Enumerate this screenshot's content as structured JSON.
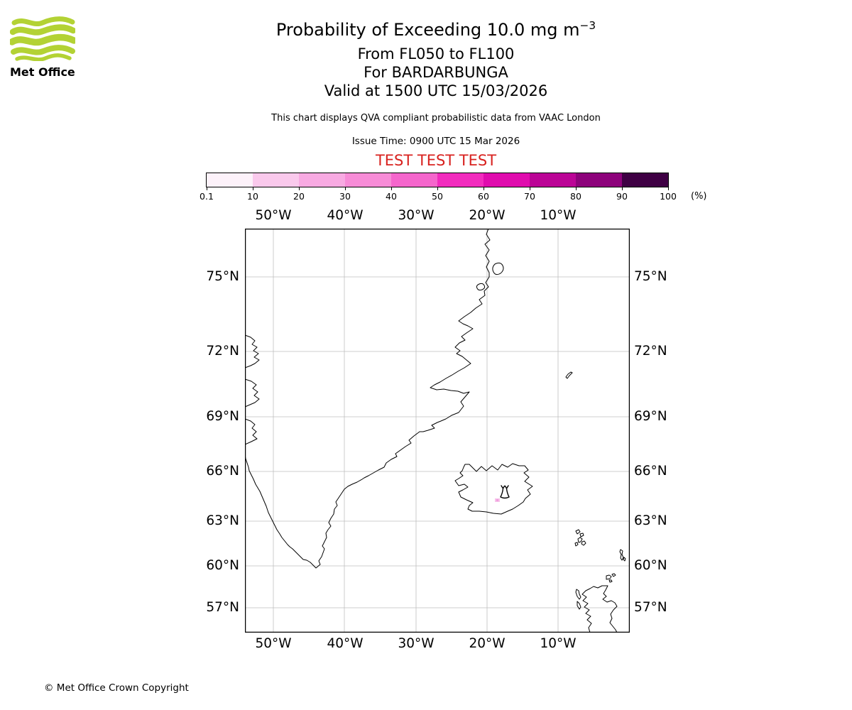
{
  "logo": {
    "text": "Met Office"
  },
  "header": {
    "title_main": "Probability of Exceeding 10.0 mg m",
    "title_exponent": "−3",
    "line_flight_levels": "From FL050 to FL100",
    "line_volcano": "For BARDARBUNGA",
    "line_valid": "Valid at 1500 UTC 15/03/2026",
    "note": "This chart displays QVA compliant probabilistic data from VAAC London",
    "issue_time": "Issue Time: 0900 UTC 15 Mar 2026",
    "test_banner": "TEST TEST TEST"
  },
  "colorbar": {
    "tick_labels": [
      "0.1",
      "10",
      "20",
      "30",
      "40",
      "50",
      "60",
      "70",
      "80",
      "90",
      "100"
    ],
    "unit": "(%)",
    "colors": [
      "#fdf2fa",
      "#fac9ec",
      "#f8aae2",
      "#f78cd7",
      "#f566cc",
      "#f22cbe",
      "#e00cae",
      "#bb0496",
      "#8d027b",
      "#3f0044"
    ]
  },
  "map": {
    "lon_labels": [
      "50°W",
      "40°W",
      "30°W",
      "20°W",
      "10°W"
    ],
    "lat_labels": [
      "75°N",
      "72°N",
      "69°N",
      "66°N",
      "63°N",
      "60°N",
      "57°N"
    ]
  },
  "footer": {
    "copyright": "© Met Office Crown Copyright"
  },
  "colors": {
    "test_banner_red": "#d8221f",
    "logo_green": "#b3d234",
    "coastline": "#000000",
    "gridlines": "#bfbfbf",
    "probability_patch": "#f6c3ea"
  }
}
